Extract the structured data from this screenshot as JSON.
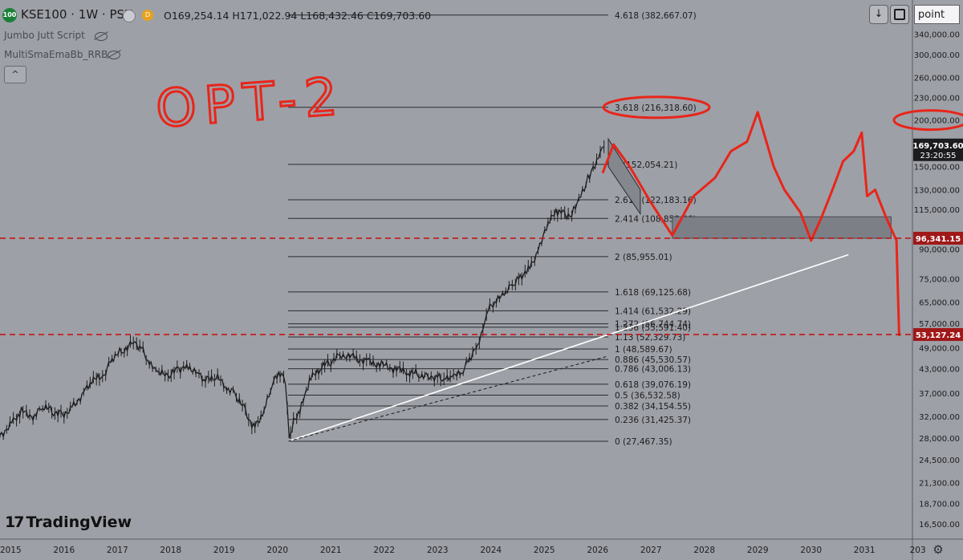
{
  "header": {
    "symbol_badge": "100",
    "title": "KSE100 · 1W · PSX",
    "ohlc": "O169,254.14 H171,022.94 L168,432.46 C169,703.60",
    "indicators": [
      "Jumbo Jutt Script",
      "MultiSmaEmaBb_RRB"
    ],
    "collapse_glyph": "^",
    "download_glyph": "↓",
    "scale_select": "point"
  },
  "logo": {
    "mark": "17",
    "text": "TradingView"
  },
  "annotation": {
    "handwritten": "OPT-2"
  },
  "colors": {
    "background": "#9ea0a7",
    "candle": "#1c1c1e",
    "red_mark": "#e8251a",
    "price_tag_bg": "#1c1c1e",
    "level_tag_bg": "#a01818"
  },
  "chart_data": {
    "type": "line",
    "title": "KSE100 · 1W · PSX",
    "y_scale": "log",
    "ylim": [
      15000,
      420000
    ],
    "xlim": [
      2014.8,
      2031.9
    ],
    "x_ticks": [
      "2015",
      "2016",
      "2017",
      "2018",
      "2019",
      "2020",
      "2021",
      "2022",
      "2023",
      "2024",
      "2025",
      "2026",
      "2027",
      "2028",
      "2029",
      "2030",
      "2031",
      "203"
    ],
    "y_ticks": [
      "340,000.00",
      "300,000.00",
      "260,000.00",
      "230,000.00",
      "200,000.00",
      "150,000.00",
      "130,000.00",
      "115,000.00",
      "90,000.00",
      "75,000.00",
      "65,000.00",
      "57,000.00",
      "49,000.00",
      "43,000.00",
      "37,000.00",
      "32,000.00",
      "28,000.00",
      "24,500.00",
      "21,300.00",
      "18,700.00",
      "16,500.00"
    ],
    "y_tick_values": [
      340000,
      300000,
      260000,
      230000,
      200000,
      150000,
      130000,
      115000,
      90000,
      75000,
      65000,
      57000,
      49000,
      43000,
      37000,
      32000,
      28000,
      24500,
      21300,
      18700,
      16500
    ],
    "price_series": {
      "x": [
        2014.8,
        2015.05,
        2015.2,
        2015.45,
        2015.6,
        2015.8,
        2016.0,
        2016.15,
        2016.4,
        2016.55,
        2016.75,
        2016.9,
        2017.1,
        2017.3,
        2017.45,
        2017.6,
        2017.75,
        2017.95,
        2018.15,
        2018.3,
        2018.5,
        2018.65,
        2018.85,
        2019.05,
        2019.2,
        2019.4,
        2019.55,
        2019.75,
        2019.9,
        2020.05,
        2020.15,
        2020.22,
        2020.3,
        2020.45,
        2020.6,
        2020.8,
        2021.0,
        2021.2,
        2021.45,
        2021.7,
        2021.95,
        2022.2,
        2022.45,
        2022.65,
        2022.85,
        2023.0,
        2023.15,
        2023.3,
        2023.45,
        2023.6,
        2023.75,
        2023.85,
        2023.95,
        2024.1,
        2024.25,
        2024.4,
        2024.55,
        2024.7,
        2024.85,
        2024.95,
        2025.1,
        2025.25,
        2025.35,
        2025.45,
        2025.55,
        2025.65,
        2025.75,
        2025.85,
        2025.95,
        2026.05,
        2026.12
      ],
      "y": [
        28500,
        31000,
        33000,
        32000,
        34000,
        33000,
        32500,
        34000,
        37500,
        40000,
        41000,
        46000,
        48000,
        51000,
        49000,
        44000,
        42000,
        41000,
        43000,
        44000,
        42000,
        40000,
        41000,
        38000,
        37000,
        33000,
        30000,
        33000,
        39000,
        42000,
        40000,
        28000,
        31000,
        34000,
        40000,
        43000,
        45000,
        47000,
        46000,
        45000,
        44000,
        43000,
        42000,
        41500,
        41000,
        41000,
        40000,
        41000,
        41500,
        46000,
        50000,
        55000,
        62000,
        65000,
        68000,
        72000,
        76000,
        80000,
        87000,
        94000,
        108000,
        113000,
        115000,
        110000,
        114000,
        122000,
        130000,
        143000,
        152000,
        165000,
        169703
      ]
    },
    "last_price": {
      "value": "169,703.60",
      "countdown": "23:20:55"
    },
    "fib_levels": [
      {
        "label": "4.618 (382,667.07)",
        "ratio": 4.618,
        "value": 382667.07
      },
      {
        "label": "3.618 (216,318.60)",
        "ratio": 3.618,
        "value": 216318.6
      },
      {
        "label": "3 (152,054.21)",
        "ratio": 3,
        "value": 152054.21
      },
      {
        "label": "2.618 (122,183.16)",
        "ratio": 2.618,
        "value": 122183.16
      },
      {
        "label": "2.414 (108,850.46)",
        "ratio": 2.414,
        "value": 108850.46
      },
      {
        "label": "2 (85,955.01)",
        "ratio": 2,
        "value": 85955.01
      },
      {
        "label": "1.618 (69,125.68)",
        "ratio": 1.618,
        "value": 69125.68
      },
      {
        "label": "1.414 (61,532.29)",
        "ratio": 1.414,
        "value": 61532.29
      },
      {
        "label": "1.272 (56,744.74)",
        "ratio": 1.272,
        "value": 56744.74
      },
      {
        "label": "1.236 (55,591.40)",
        "ratio": 1.236,
        "value": 55591.4
      },
      {
        "label": "1.13 (52,329.73)",
        "ratio": 1.13,
        "value": 52329.73
      },
      {
        "label": "1 (48,589.67)",
        "ratio": 1,
        "value": 48589.67
      },
      {
        "label": "0.886 (45,530.57)",
        "ratio": 0.886,
        "value": 45530.57
      },
      {
        "label": "0.786 (43,006.13)",
        "ratio": 0.786,
        "value": 43006.13
      },
      {
        "label": "0.618 (39,076.19)",
        "ratio": 0.618,
        "value": 39076.19
      },
      {
        "label": "0.5 (36,532.58)",
        "ratio": 0.5,
        "value": 36532.58
      },
      {
        "label": "0.382 (34,154.55)",
        "ratio": 0.382,
        "value": 34154.55
      },
      {
        "label": "0.236 (31,425.37)",
        "ratio": 0.236,
        "value": 31425.37
      },
      {
        "label": "0 (27,467.35)",
        "ratio": 0,
        "value": 27467.35
      }
    ],
    "fib_start_x": 2020.2,
    "fib_end_x": 2026.2,
    "horizontal_levels": [
      {
        "label": "96,341.15",
        "value": 96341.15
      },
      {
        "label": "53,127.24",
        "value": 53127.24
      }
    ],
    "trendlines": [
      {
        "style": "solid-white",
        "x": [
          2020.2,
          2030.7
        ],
        "y": [
          27467,
          87000
        ]
      },
      {
        "style": "dashed-black",
        "x": [
          2020.2,
          2026.2
        ],
        "y": [
          27467,
          46500
        ]
      }
    ],
    "zone_box": {
      "x": [
        2027.4,
        2031.5
      ],
      "y": [
        96341,
        110000
      ]
    },
    "channel": {
      "x": [
        2026.2,
        2026.8
      ],
      "top": [
        178000,
        130000
      ],
      "bottom": [
        150000,
        112000
      ]
    },
    "projection_path": {
      "x": [
        2026.1,
        2026.3,
        2026.6,
        2027.0,
        2027.4,
        2027.8,
        2028.2,
        2028.5,
        2028.8,
        2029.0,
        2029.3,
        2029.5,
        2029.8,
        2030.0,
        2030.2,
        2030.4,
        2030.6,
        2030.8,
        2030.95,
        2031.05,
        2031.2,
        2031.4,
        2031.6,
        2031.65
      ],
      "y": [
        145000,
        172000,
        150000,
        120000,
        98000,
        125000,
        140000,
        165000,
        175000,
        210000,
        150000,
        130000,
        113000,
        95000,
        110000,
        130000,
        155000,
        165000,
        185000,
        125000,
        130000,
        110000,
        95000,
        53000
      ]
    }
  }
}
